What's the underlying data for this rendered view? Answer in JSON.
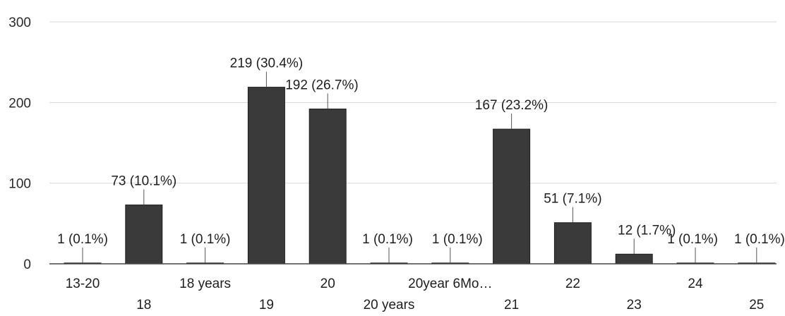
{
  "chart_data": {
    "type": "bar",
    "categories": [
      "13-20",
      "18",
      "18 years",
      "19",
      "20",
      "20 years",
      "20year 6Mo…",
      "21",
      "22",
      "23",
      "24",
      "25"
    ],
    "values": [
      1,
      73,
      1,
      219,
      192,
      1,
      1,
      167,
      51,
      12,
      1,
      1
    ],
    "data_labels": [
      "1 (0.1%)",
      "73 (10.1%)",
      "1 (0.1%)",
      "219 (30.4%)",
      "192 (26.7%)",
      "1 (0.1%)",
      "1 (0.1%)",
      "167 (23.2%)",
      "51 (7.1%)",
      "12 (1.7%)",
      "1 (0.1%)",
      "1 (0.1%)"
    ],
    "y_ticks": [
      "0",
      "100",
      "200",
      "300"
    ],
    "ylim": [
      0,
      300
    ],
    "grid": true,
    "legend": "none",
    "bar_color": "#3a3a3a"
  }
}
